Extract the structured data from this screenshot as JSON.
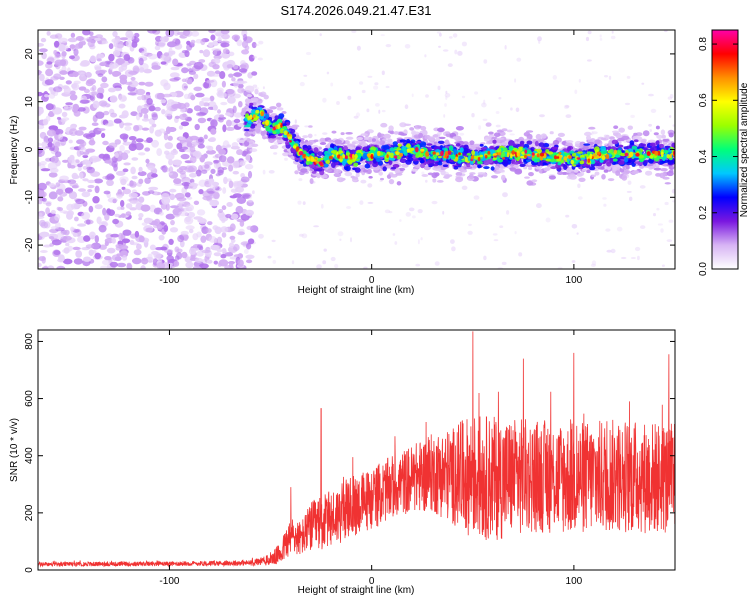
{
  "title": "S174.2026.049.21.47.E31",
  "chart_data": [
    {
      "type": "heatmap",
      "xlabel": "Height of straight line (km)",
      "ylabel": "Frequency (Hz)",
      "xlim": [
        -165,
        150
      ],
      "ylim": [
        -25,
        25
      ],
      "xticks": [
        -100,
        0,
        100
      ],
      "xtick_labels": [
        "-100",
        "0",
        "100"
      ],
      "yticks": [
        -20,
        -10,
        0,
        10,
        20
      ],
      "ytick_labels": [
        "-20",
        "-10",
        "0",
        "10",
        "20"
      ],
      "colorbar": {
        "label": "Normalized spectral amplitude",
        "range": [
          0.0,
          0.85
        ],
        "ticks": [
          0.0,
          0.2,
          0.4,
          0.6,
          0.8
        ],
        "tick_labels": [
          "0.0",
          "0.2",
          "0.4",
          "0.6",
          "0.8"
        ],
        "colors": [
          "#ffffff",
          "#d7b4f4",
          "#7a17e0",
          "#0000ff",
          "#00c8ff",
          "#00ff7a",
          "#9bff00",
          "#ffff00",
          "#ff9000",
          "#ff0000",
          "#ff00a8"
        ]
      },
      "regions": [
        {
          "description": "noise",
          "x_range": [
            -165,
            -62
          ],
          "freq_range": [
            -25,
            25
          ],
          "amplitude": 0.08
        },
        {
          "description": "signal trace",
          "centre_freq": [
            [
              -62,
              6
            ],
            [
              -55,
              8
            ],
            [
              -50,
              4
            ],
            [
              -45,
              5
            ],
            [
              -40,
              2
            ],
            [
              -35,
              -1
            ],
            [
              -30,
              -2
            ],
            [
              -25,
              -3
            ],
            [
              -20,
              -1
            ],
            [
              -10,
              -2
            ],
            [
              0,
              -1
            ],
            [
              10,
              -1
            ],
            [
              20,
              0
            ],
            [
              30,
              -1
            ],
            [
              40,
              -1
            ],
            [
              50,
              -2
            ],
            [
              60,
              -1
            ],
            [
              80,
              -1
            ],
            [
              100,
              -2
            ],
            [
              120,
              -1
            ],
            [
              150,
              -1
            ]
          ],
          "amplitude_peak": 0.8
        }
      ]
    },
    {
      "type": "line",
      "xlabel": "Height of straight line (km)",
      "ylabel": "SNR (10 * v/v)",
      "xlim": [
        -165,
        150
      ],
      "ylim": [
        0,
        840
      ],
      "xticks": [
        -100,
        0,
        100
      ],
      "xtick_labels": [
        "-100",
        "0",
        "100"
      ],
      "yticks": [
        0,
        200,
        400,
        600,
        800
      ],
      "ytick_labels": [
        "0",
        "200",
        "400",
        "600",
        "800"
      ],
      "color": "#f03232",
      "envelope": {
        "x": [
          -165,
          -100,
          -60,
          -50,
          -45,
          -40,
          -35,
          -30,
          -20,
          -10,
          0,
          10,
          20,
          30,
          40,
          50,
          60,
          80,
          100,
          120,
          150
        ],
        "median": [
          20,
          22,
          25,
          35,
          60,
          120,
          110,
          150,
          180,
          220,
          250,
          290,
          320,
          340,
          330,
          330,
          320,
          330,
          320,
          330,
          320
        ],
        "spread": [
          8,
          8,
          10,
          20,
          40,
          70,
          60,
          90,
          100,
          110,
          110,
          110,
          120,
          140,
          170,
          220,
          220,
          200,
          200,
          200,
          200
        ]
      },
      "peaks": [
        {
          "x": -40,
          "y": 290
        },
        {
          "x": -25,
          "y": 565
        },
        {
          "x": 50,
          "y": 835
        },
        {
          "x": 75,
          "y": 740
        },
        {
          "x": 100,
          "y": 760
        },
        {
          "x": 147,
          "y": 755
        }
      ]
    }
  ]
}
